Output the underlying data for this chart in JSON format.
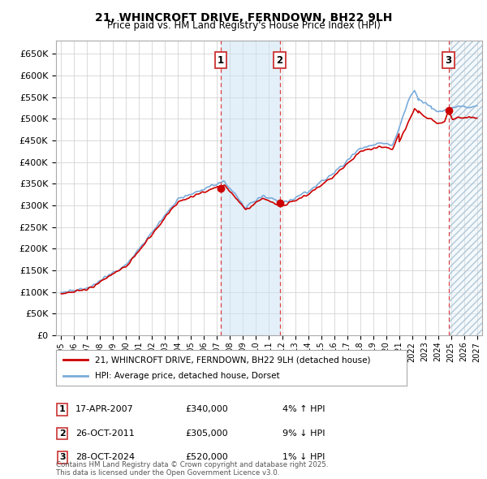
{
  "title": "21, WHINCROFT DRIVE, FERNDOWN, BH22 9LH",
  "subtitle": "Price paid vs. HM Land Registry's House Price Index (HPI)",
  "ylim": [
    0,
    680000
  ],
  "yticks": [
    0,
    50000,
    100000,
    150000,
    200000,
    250000,
    300000,
    350000,
    400000,
    450000,
    500000,
    550000,
    600000,
    650000
  ],
  "xlim_start": 1994.6,
  "xlim_end": 2027.4,
  "transactions": [
    {
      "num": 1,
      "date": "17-APR-2007",
      "price": 340000,
      "price_str": "£340,000",
      "pct": "4%",
      "dir": "↑",
      "x": 2007.29
    },
    {
      "num": 2,
      "date": "26-OCT-2011",
      "price": 305000,
      "price_str": "£305,000",
      "pct": "9%",
      "dir": "↓",
      "x": 2011.82
    },
    {
      "num": 3,
      "date": "28-OCT-2024",
      "price": 520000,
      "price_str": "£520,000",
      "pct": "1%",
      "dir": "↓",
      "x": 2024.82
    }
  ],
  "legend_line1": "21, WHINCROFT DRIVE, FERNDOWN, BH22 9LH (detached house)",
  "legend_line2": "HPI: Average price, detached house, Dorset",
  "footer": "Contains HM Land Registry data © Crown copyright and database right 2025.\nThis data is licensed under the Open Government Licence v3.0.",
  "line_color_red": "#cc0000",
  "line_color_blue": "#7aabda",
  "bg_color": "#ffffff",
  "grid_color": "#cccccc"
}
